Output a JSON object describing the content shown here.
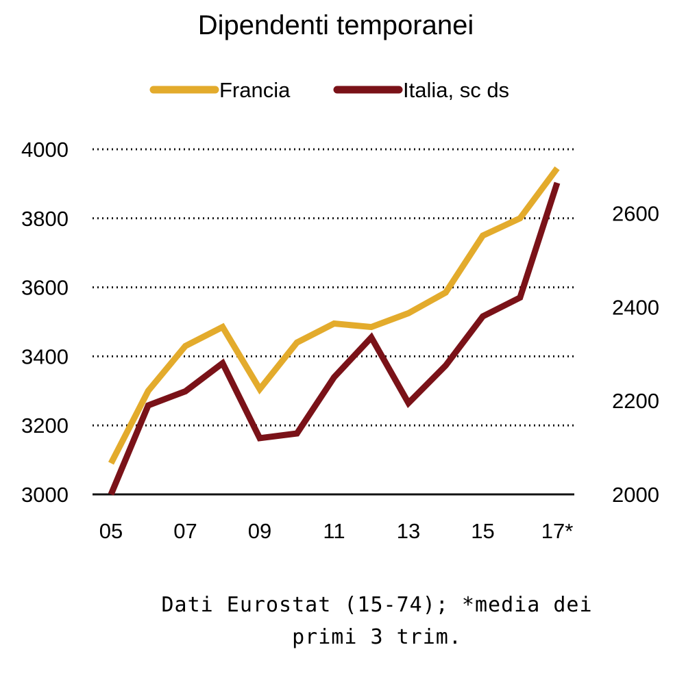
{
  "chart_data": {
    "type": "line",
    "title": "Dipendenti temporanei",
    "x": [
      "05",
      "06",
      "07",
      "08",
      "09",
      "10",
      "11",
      "12",
      "13",
      "14",
      "15",
      "16",
      "17*"
    ],
    "x_tick_labels": [
      "05",
      "07",
      "09",
      "11",
      "13",
      "15",
      "17*"
    ],
    "series": [
      {
        "name": "Francia",
        "axis": "left",
        "color": "#e3ab2c",
        "values": [
          3090,
          3300,
          3430,
          3485,
          3305,
          3440,
          3495,
          3485,
          3525,
          3585,
          3750,
          3800,
          3945
        ]
      },
      {
        "name": "Italia, sc ds",
        "axis": "right",
        "color": "#7a1218",
        "values": [
          2000,
          2190,
          2220,
          2280,
          2120,
          2130,
          2250,
          2335,
          2195,
          2275,
          2380,
          2420,
          2665
        ]
      }
    ],
    "y_left": {
      "min": 3000,
      "max": 4000,
      "ticks": [
        3000,
        3200,
        3400,
        3600,
        3800,
        4000
      ]
    },
    "y_right": {
      "min": 2000,
      "max": 2700,
      "ticks": [
        2000,
        2200,
        2400,
        2600
      ]
    },
    "grid": "horizontal-dotted",
    "legend": "top-center",
    "note_lines": [
      "Dati Eurostat (15-74); *media dei",
      "primi 3 trim."
    ]
  }
}
